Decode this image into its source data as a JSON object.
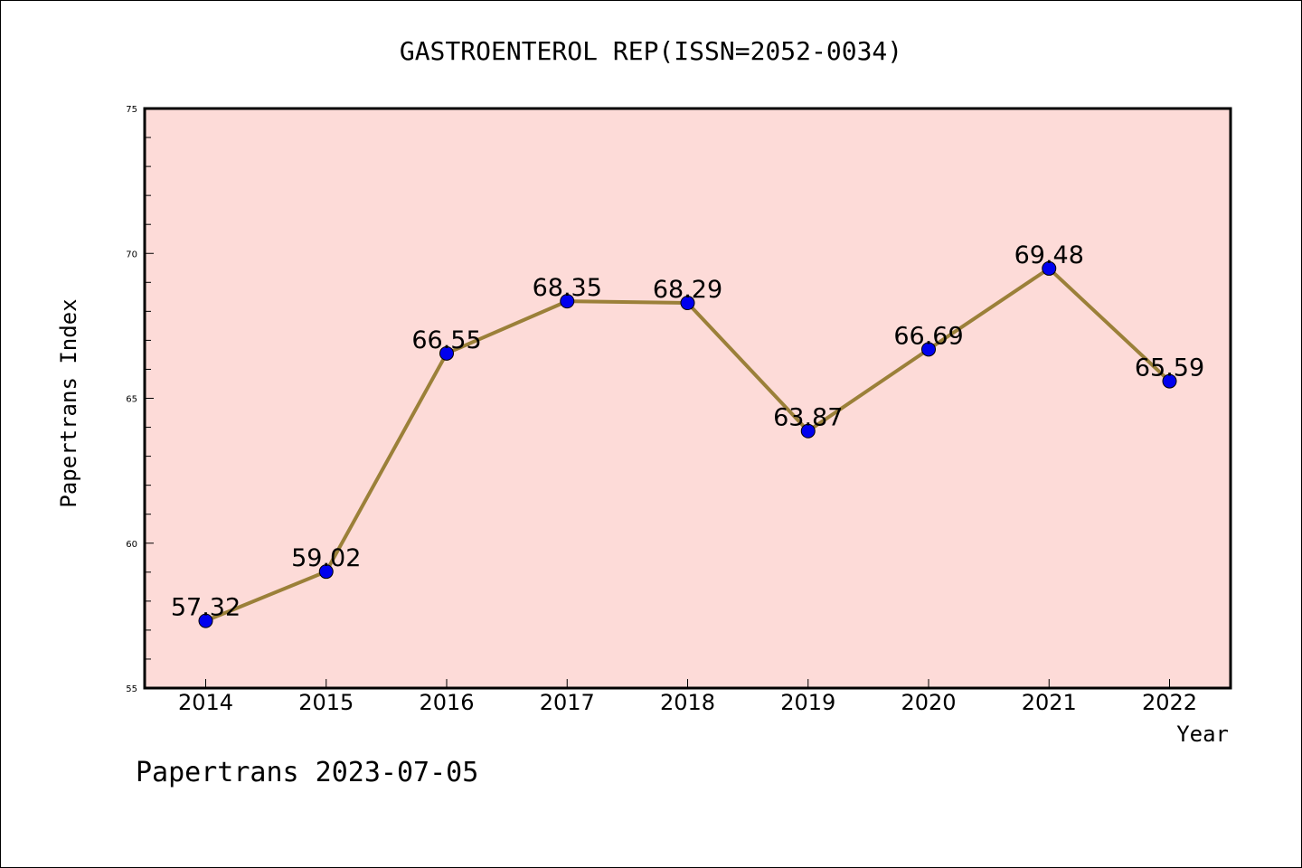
{
  "chart_data": {
    "type": "line",
    "title": "GASTROENTEROL REP(ISSN=2052-0034)",
    "xlabel": "Year",
    "ylabel": "Papertrans Index",
    "categories": [
      "2014",
      "2015",
      "2016",
      "2017",
      "2018",
      "2019",
      "2020",
      "2021",
      "2022"
    ],
    "values": [
      57.32,
      59.02,
      66.55,
      68.35,
      68.29,
      63.87,
      66.69,
      69.48,
      65.59
    ],
    "data_labels": [
      "57.32",
      "59.02",
      "66.55",
      "68.35",
      "68.29",
      "63.87",
      "66.69",
      "69.48",
      "65.59"
    ],
    "ylim": [
      55,
      75
    ],
    "yticks": [
      "55",
      "60",
      "65",
      "70",
      "75"
    ],
    "grid": false,
    "legend": "none",
    "colors": {
      "plot_background": "#fddbd8",
      "line": "#9b8039",
      "marker": "#0000ee"
    }
  },
  "footer": {
    "text": "Papertrans 2023-07-05"
  }
}
